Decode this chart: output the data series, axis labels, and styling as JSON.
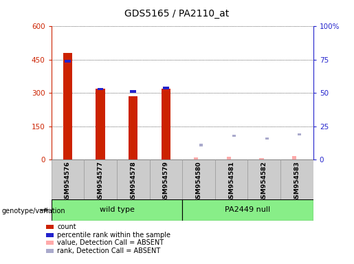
{
  "title": "GDS5165 / PA2110_at",
  "samples": [
    "GSM954576",
    "GSM954577",
    "GSM954578",
    "GSM954579",
    "GSM954580",
    "GSM954581",
    "GSM954582",
    "GSM954583"
  ],
  "count_values": [
    480,
    320,
    285,
    320,
    0,
    0,
    0,
    0
  ],
  "percentile_rank": [
    74,
    53,
    51,
    54,
    0,
    0,
    0,
    0
  ],
  "absent_value": [
    0,
    0,
    0,
    0,
    10,
    13,
    8,
    15
  ],
  "absent_rank_pct": [
    0,
    0,
    0,
    0,
    11,
    18,
    16,
    19
  ],
  "left_yticks": [
    0,
    150,
    300,
    450,
    600
  ],
  "right_yticks": [
    0,
    25,
    50,
    75,
    100
  ],
  "left_ylim": [
    0,
    600
  ],
  "right_ylim": [
    0,
    100
  ],
  "bar_color_count": "#cc2200",
  "bar_color_rank": "#2222cc",
  "bar_color_absent_value": "#ffaaaa",
  "bar_color_absent_rank": "#aaaacc",
  "bg_group": "#88ee88",
  "title_fontsize": 10,
  "group_wt": "wild type",
  "group_pa": "PA2449 null"
}
